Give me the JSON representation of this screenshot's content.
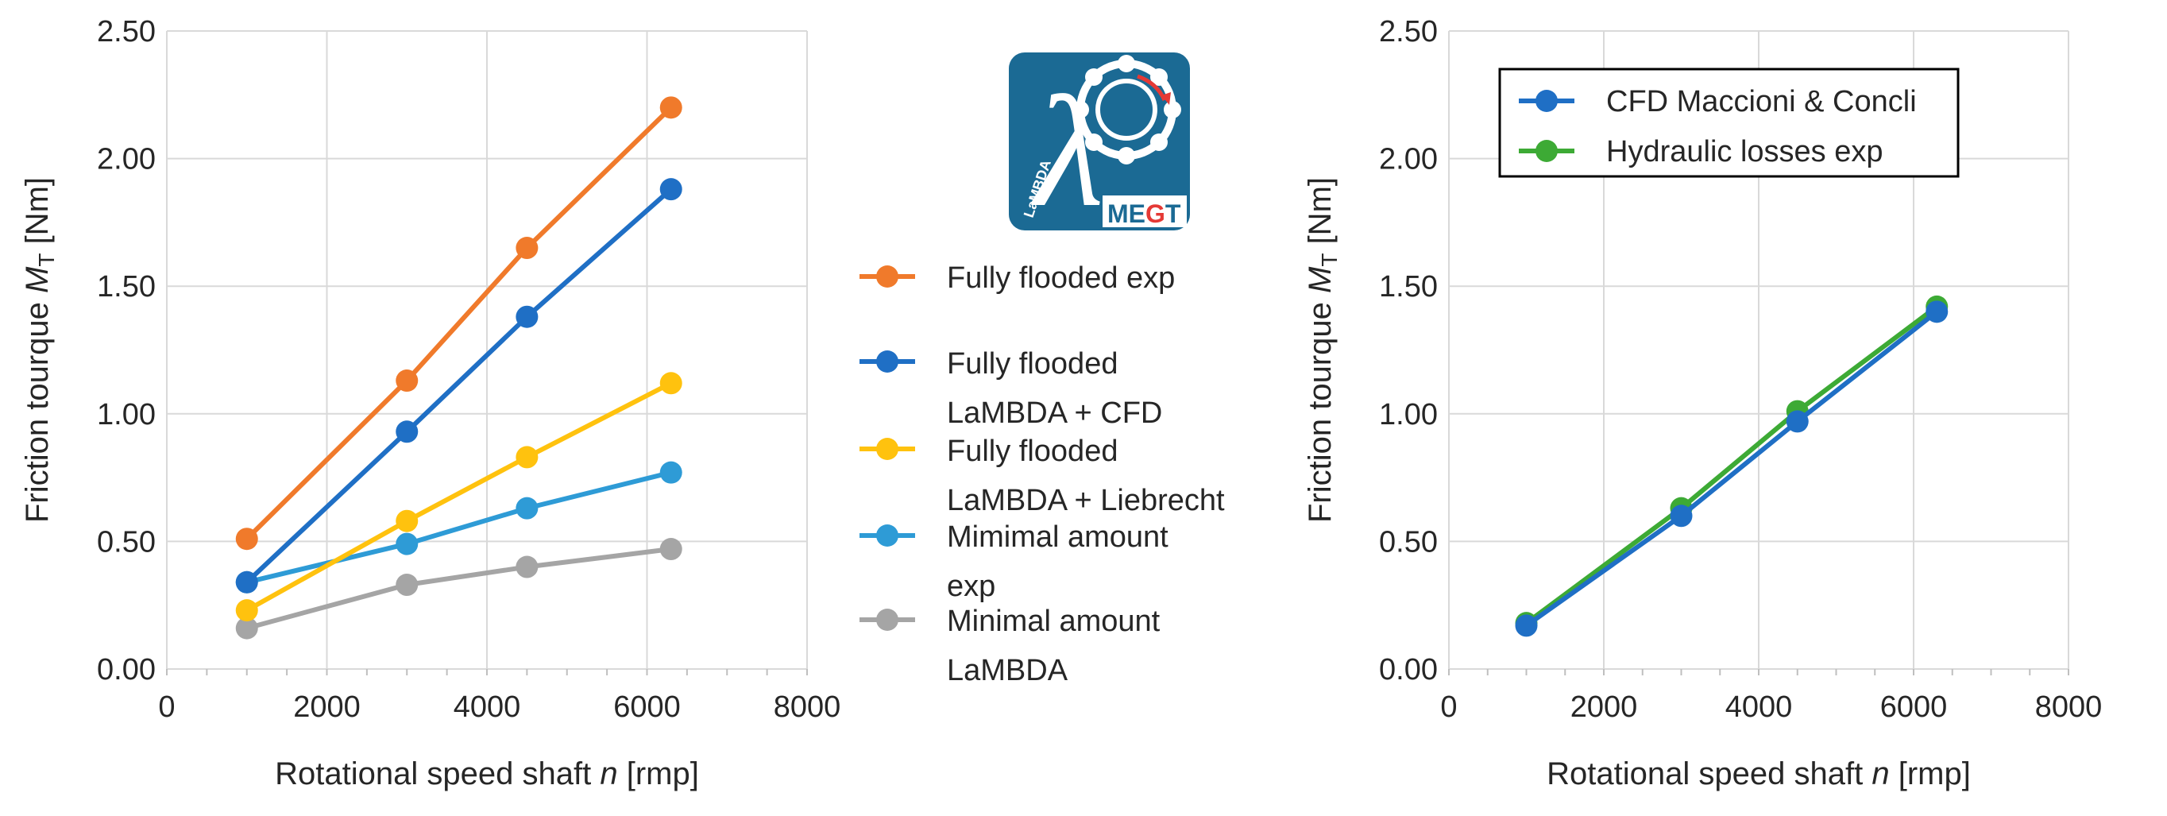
{
  "chart_data": [
    {
      "type": "line",
      "xlabel": "Rotational speed shaft",
      "xlabel_var": "n",
      "xlabel_unit": "[rmp]",
      "ylabel": "Friction tourque",
      "ylabel_var": "M",
      "ylabel_sub": "T",
      "ylabel_unit": "[Nm]",
      "xlim": [
        0,
        8000
      ],
      "ylim": [
        0,
        2.5
      ],
      "xticks": [
        "0",
        "2000",
        "4000",
        "6000",
        "8000"
      ],
      "yticks": [
        "0.00",
        "0.50",
        "1.00",
        "1.50",
        "2.00",
        "2.50"
      ],
      "grid": true,
      "legend_position": "right-outside",
      "series": [
        {
          "name_lines": [
            "Fully flooded exp"
          ],
          "color": "#F07A2B",
          "x": [
            1000,
            3000,
            4500,
            6300
          ],
          "y": [
            0.51,
            1.13,
            1.65,
            2.2
          ]
        },
        {
          "name_lines": [
            "Fully flooded",
            "LaMBDA + CFD"
          ],
          "color": "#1F6FC5",
          "x": [
            1000,
            3000,
            4500,
            6300
          ],
          "y": [
            0.34,
            0.93,
            1.38,
            1.88
          ]
        },
        {
          "name_lines": [
            "Fully flooded",
            "LaMBDA + Liebrecht"
          ],
          "color": "#FFC20E",
          "x": [
            1000,
            3000,
            4500,
            6300
          ],
          "y": [
            0.23,
            0.58,
            0.83,
            1.12
          ]
        },
        {
          "name_lines": [
            "Mimimal amount",
            "exp"
          ],
          "color": "#2E9BD6",
          "x": [
            1000,
            3000,
            4500,
            6300
          ],
          "y": [
            0.34,
            0.49,
            0.63,
            0.77
          ]
        },
        {
          "name_lines": [
            "Minimal amount",
            "LaMBDA"
          ],
          "color": "#A5A5A5",
          "x": [
            1000,
            3000,
            4500,
            6300
          ],
          "y": [
            0.16,
            0.33,
            0.4,
            0.47
          ]
        }
      ]
    },
    {
      "type": "line",
      "xlabel": "Rotational speed shaft",
      "xlabel_var": "n",
      "xlabel_unit": "[rmp]",
      "ylabel": "Friction tourque",
      "ylabel_var": "M",
      "ylabel_sub": "T",
      "ylabel_unit": "[Nm]",
      "xlim": [
        0,
        8000
      ],
      "ylim": [
        0,
        2.5
      ],
      "xticks": [
        "0",
        "2000",
        "4000",
        "6000",
        "8000"
      ],
      "yticks": [
        "0.00",
        "0.50",
        "1.00",
        "1.50",
        "2.00",
        "2.50"
      ],
      "grid": true,
      "legend_position": "top-left",
      "series": [
        {
          "name_lines": [
            "CFD Maccioni & Concli"
          ],
          "color": "#1F6FC5",
          "x": [
            1000,
            3000,
            4500,
            6300
          ],
          "y": [
            0.17,
            0.6,
            0.97,
            1.4
          ]
        },
        {
          "name_lines": [
            "Hydraulic losses exp"
          ],
          "color": "#3DAA35",
          "x": [
            1000,
            3000,
            4500,
            6300
          ],
          "y": [
            0.18,
            0.63,
            1.01,
            1.42
          ]
        }
      ]
    }
  ],
  "logo": {
    "symbol": "λ",
    "vertical_text": "LaMBDA",
    "brand_text_left": "ME",
    "brand_text_mid": "G",
    "brand_text_right": "T",
    "bg_color": "#1B6A94"
  }
}
